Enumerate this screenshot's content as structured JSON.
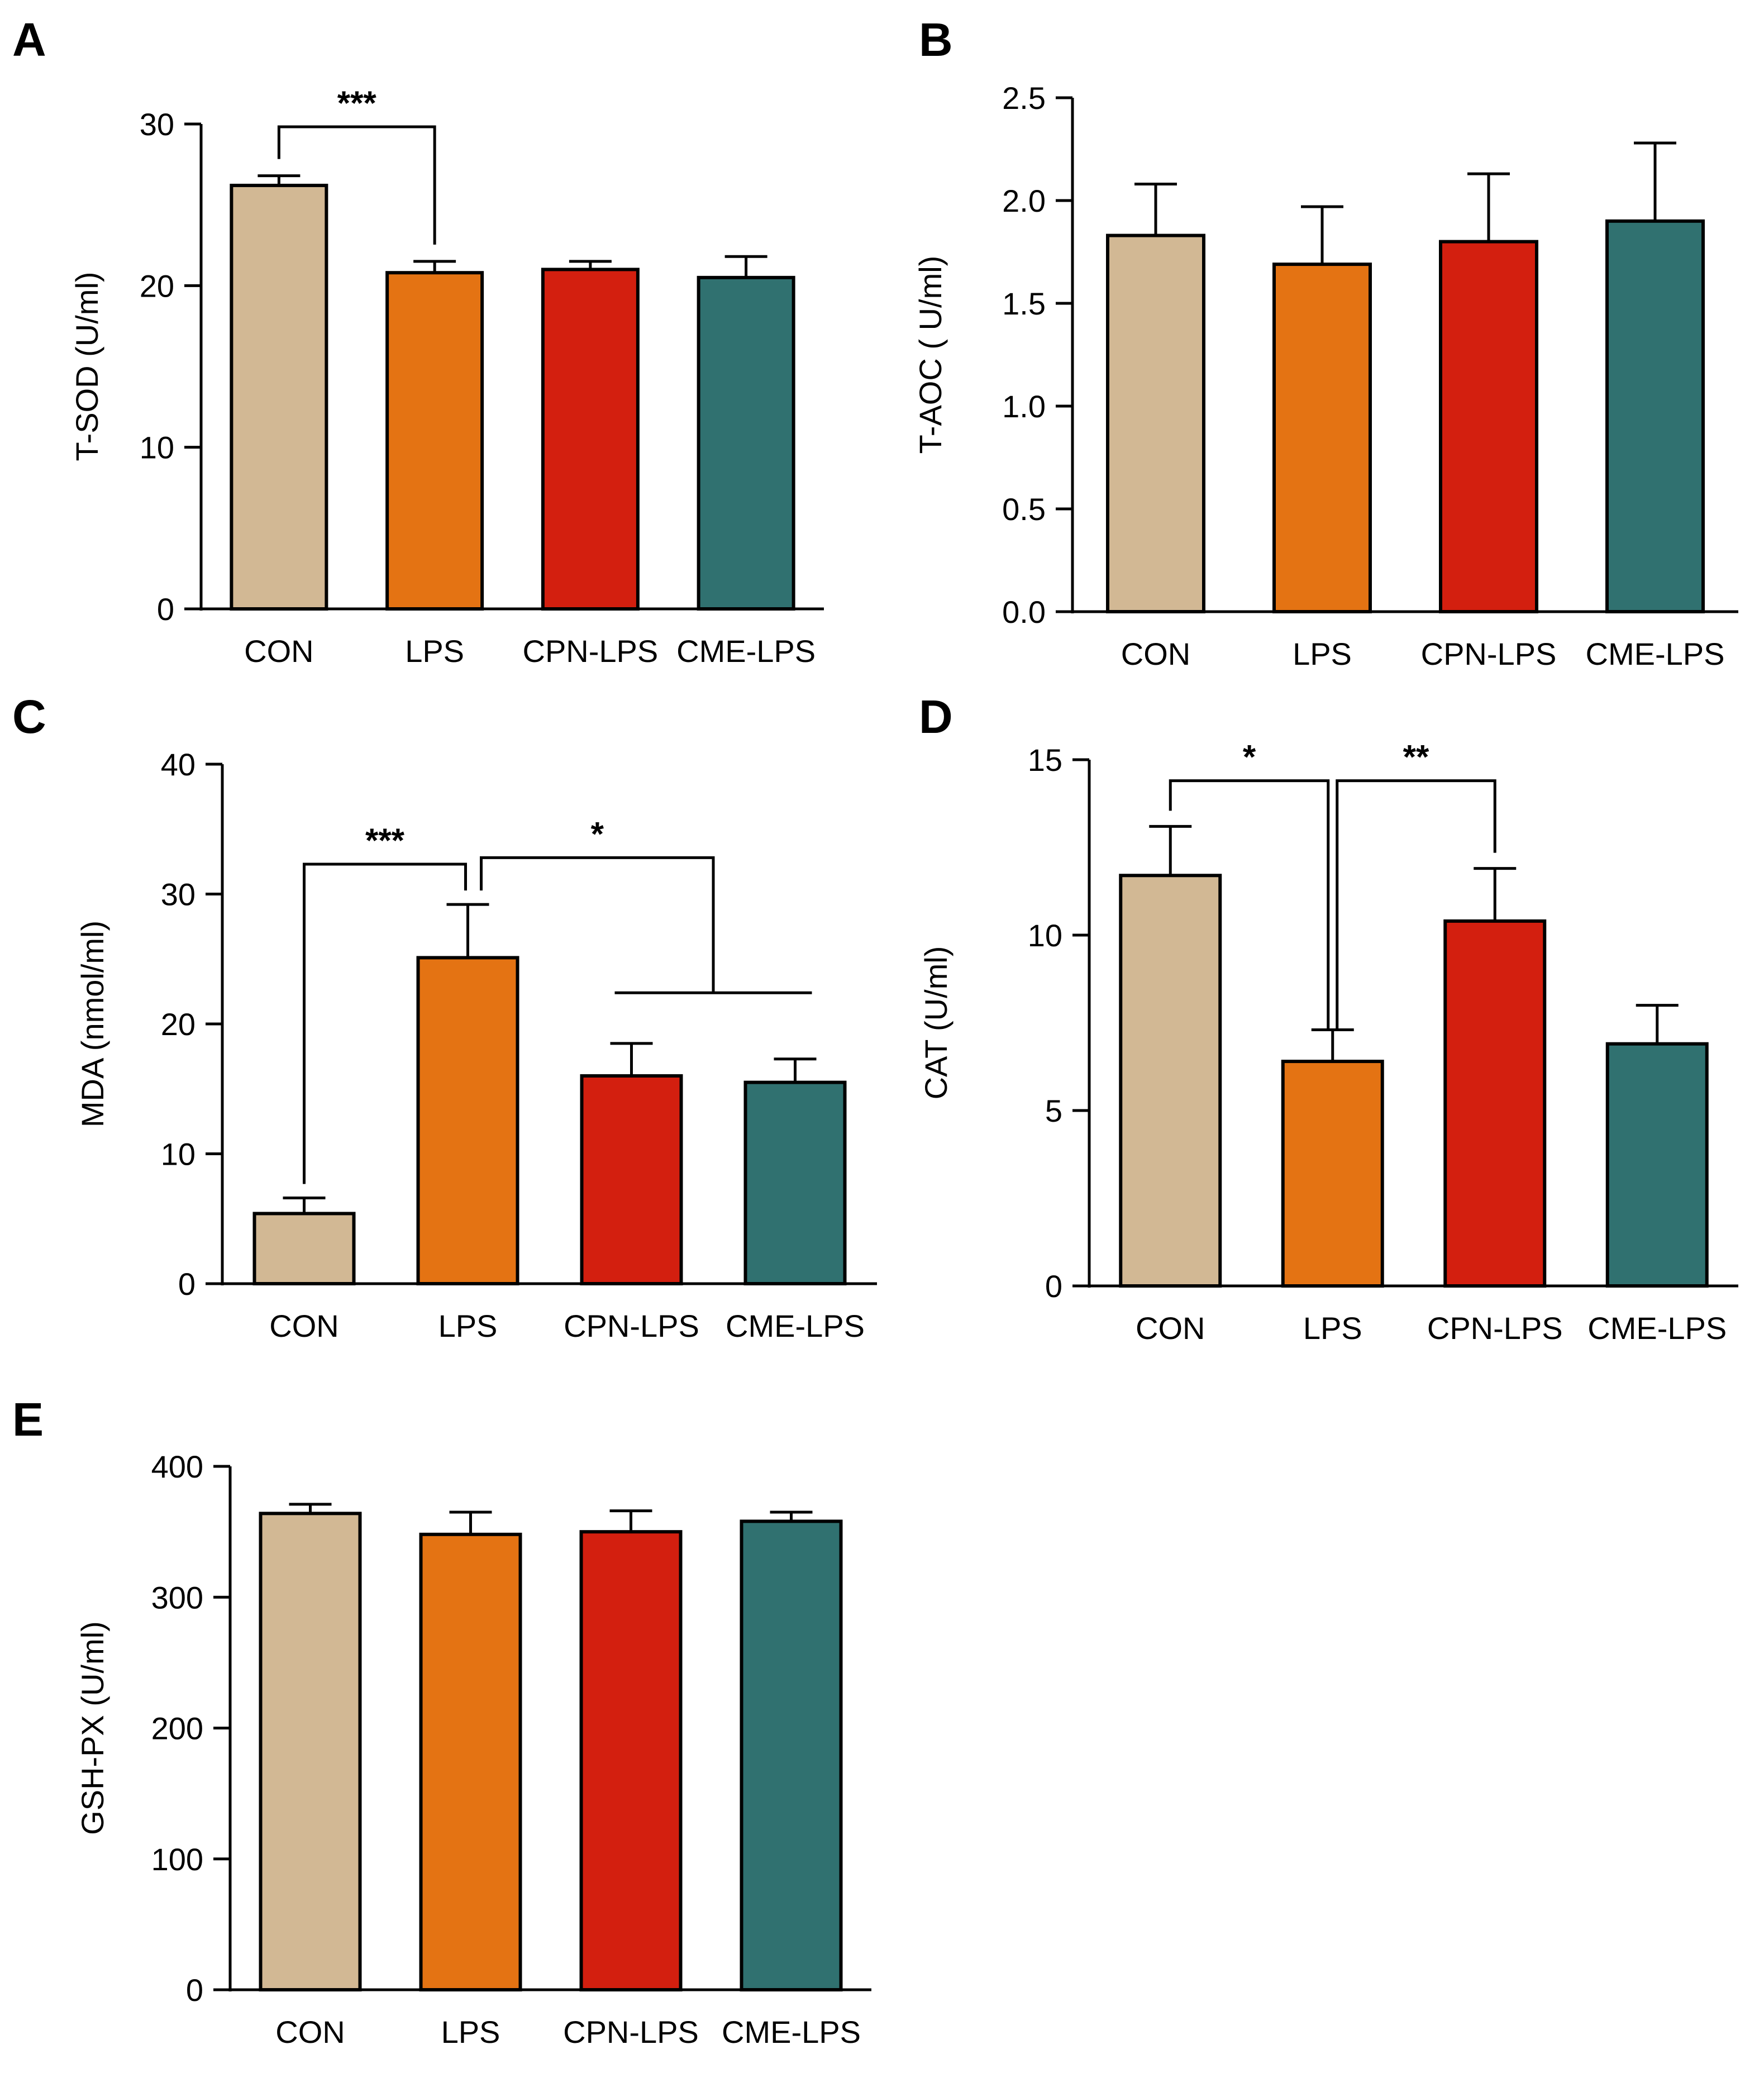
{
  "figure": {
    "categories": [
      "CON",
      "LPS",
      "CPN-LPS",
      "CME-LPS"
    ],
    "colors": [
      "#d2b894",
      "#e47313",
      "#d31f0f",
      "#307170"
    ]
  },
  "chart_data": [
    {
      "panel": "A",
      "type": "bar",
      "ylabel": "T-SOD (U/ml)",
      "ylim": [
        0,
        30
      ],
      "yticks": [
        "0",
        "10",
        "20",
        "30"
      ],
      "categories": [
        "CON",
        "LPS",
        "CPN-LPS",
        "CME-LPS"
      ],
      "values": [
        26.2,
        20.8,
        21.0,
        20.5
      ],
      "errors": [
        0.6,
        0.7,
        0.5,
        1.3
      ],
      "significance": [
        {
          "label": "***",
          "from": 0,
          "to": 1
        }
      ]
    },
    {
      "panel": "B",
      "type": "bar",
      "ylabel": "T-AOC ( U/ml)",
      "ylim": [
        0,
        2.5
      ],
      "yticks": [
        "0.0",
        "0.5",
        "1.0",
        "1.5",
        "2.0",
        "2.5"
      ],
      "categories": [
        "CON",
        "LPS",
        "CPN-LPS",
        "CME-LPS"
      ],
      "values": [
        1.83,
        1.69,
        1.8,
        1.9
      ],
      "errors": [
        0.25,
        0.28,
        0.33,
        0.38
      ],
      "significance": []
    },
    {
      "panel": "C",
      "type": "bar",
      "ylabel": "MDA (nmol/ml)",
      "ylim": [
        0,
        40
      ],
      "yticks": [
        "0",
        "10",
        "20",
        "30",
        "40"
      ],
      "categories": [
        "CON",
        "LPS",
        "CPN-LPS",
        "CME-LPS"
      ],
      "values": [
        5.4,
        25.1,
        16.0,
        15.5
      ],
      "errors": [
        1.2,
        4.1,
        2.5,
        1.8
      ],
      "significance": [
        {
          "label": "***",
          "from": 0,
          "to": 1
        },
        {
          "label": "*",
          "from": 1,
          "to_group": [
            2,
            3
          ]
        }
      ]
    },
    {
      "panel": "D",
      "type": "bar",
      "ylabel": "CAT (U/ml)",
      "ylim": [
        0,
        15
      ],
      "yticks": [
        "0",
        "5",
        "10",
        "15"
      ],
      "categories": [
        "CON",
        "LPS",
        "CPN-LPS",
        "CME-LPS"
      ],
      "values": [
        11.7,
        6.4,
        10.4,
        6.9
      ],
      "errors": [
        1.4,
        0.9,
        1.5,
        1.1
      ],
      "significance": [
        {
          "label": "*",
          "from": 0,
          "to": 1
        },
        {
          "label": "**",
          "from": 1,
          "to": 2
        }
      ]
    },
    {
      "panel": "E",
      "type": "bar",
      "ylabel": "GSH-PX (U/ml)",
      "ylim": [
        0,
        400
      ],
      "yticks": [
        "0",
        "100",
        "200",
        "300",
        "400"
      ],
      "categories": [
        "CON",
        "LPS",
        "CPN-LPS",
        "CME-LPS"
      ],
      "values": [
        364,
        348,
        350,
        358
      ],
      "errors": [
        7,
        17,
        16,
        7
      ],
      "significance": []
    }
  ]
}
